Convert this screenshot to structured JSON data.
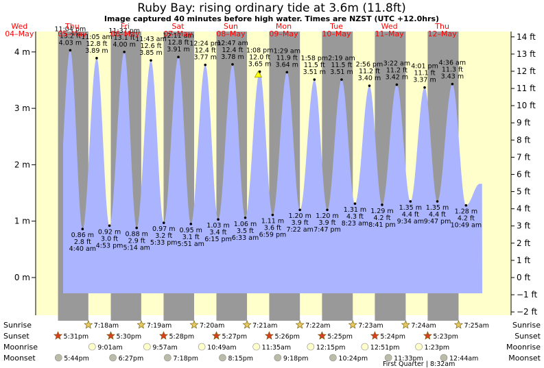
{
  "chart_data": {
    "type": "area",
    "title": "Ruby Bay: rising  ordinary tide at 3.6m (11.8ft)",
    "subtitle": "Image captured 40 minutes before high water. Times are NZST (UTC +12.0hrs)",
    "ylabel_left_unit": "m",
    "ylabel_right_unit": "ft",
    "y_left_ticks": [
      "0 m",
      "1 m",
      "2 m",
      "3 m",
      "4 m"
    ],
    "y_right_ticks": [
      "−2 ft",
      "−1 ft",
      "0 ft",
      "1 ft",
      "2 ft",
      "3 ft",
      "4 ft",
      "5 ft",
      "6 ft",
      "7 ft",
      "8 ft",
      "9 ft",
      "10 ft",
      "11 ft",
      "12 ft",
      "13 ft",
      "14 ft"
    ],
    "days": [
      {
        "name": "Wed",
        "date": "04–May"
      },
      {
        "name": "Thu",
        "date": "05–May"
      },
      {
        "name": "Fri",
        "date": "06–May"
      },
      {
        "name": "Sat",
        "date": "07–May"
      },
      {
        "name": "Sun",
        "date": "08–May"
      },
      {
        "name": "Mon",
        "date": "09–May"
      },
      {
        "name": "Tue",
        "date": "10–May"
      },
      {
        "name": "Wed",
        "date": "11–May"
      },
      {
        "name": "Thu",
        "date": "12–May"
      }
    ],
    "current_level_m": 3.6,
    "tides": [
      {
        "type": "high",
        "time": "11:04 pm",
        "ft": "13.2 ft",
        "m": 4.03,
        "label": "4.03 m"
      },
      {
        "type": "low",
        "time": "4:40 am",
        "ft": "2.8 ft",
        "m": 0.86,
        "label": "0.86 m"
      },
      {
        "type": "high",
        "time": "11:05 am",
        "ft": "12.8 ft",
        "m": 3.89,
        "label": "3.89 m"
      },
      {
        "type": "low",
        "time": "4:53 pm",
        "ft": "3.0 ft",
        "m": 0.92,
        "label": "0.92 m"
      },
      {
        "type": "high",
        "time": "11:37 pm",
        "ft": "13.1 ft",
        "m": 4.0,
        "label": "4.00 m"
      },
      {
        "type": "low",
        "time": "5:14 am",
        "ft": "2.9 ft",
        "m": 0.88,
        "label": "0.88 m"
      },
      {
        "type": "high",
        "time": "11:43 am",
        "ft": "12.6 ft",
        "m": 3.85,
        "label": "3.85 m"
      },
      {
        "type": "low",
        "time": "5:33 pm",
        "ft": "3.2 ft",
        "m": 0.97,
        "label": "0.97 m"
      },
      {
        "type": "high",
        "time": "12:11 am",
        "ft": "12.8 ft",
        "m": 3.91,
        "label": "3.91 m"
      },
      {
        "type": "low",
        "time": "5:51 am",
        "ft": "3.1 ft",
        "m": 0.95,
        "label": "0.95 m"
      },
      {
        "type": "high",
        "time": "12:24 pm",
        "ft": "12.4 ft",
        "m": 3.77,
        "label": "3.77 m"
      },
      {
        "type": "low",
        "time": "6:15 pm",
        "ft": "3.4 ft",
        "m": 1.03,
        "label": "1.03 m"
      },
      {
        "type": "high",
        "time": "12:47 am",
        "ft": "12.4 ft",
        "m": 3.78,
        "label": "3.78 m"
      },
      {
        "type": "low",
        "time": "6:33 am",
        "ft": "3.5 ft",
        "m": 1.06,
        "label": "1.06 m"
      },
      {
        "type": "high",
        "time": "1:08 pm",
        "ft": "12.0 ft",
        "m": 3.65,
        "label": "3.65 m"
      },
      {
        "type": "low",
        "time": "6:59 pm",
        "ft": "3.6 ft",
        "m": 1.11,
        "label": "1.11 m"
      },
      {
        "type": "high",
        "time": "1:29 am",
        "ft": "11.9 ft",
        "m": 3.64,
        "label": "3.64 m"
      },
      {
        "type": "low",
        "time": "7:22 am",
        "ft": "3.9 ft",
        "m": 1.2,
        "label": "1.20 m"
      },
      {
        "type": "high",
        "time": "1:58 pm",
        "ft": "11.5 ft",
        "m": 3.51,
        "label": "3.51 m"
      },
      {
        "type": "low",
        "time": "7:47 pm",
        "ft": "3.9 ft",
        "m": 1.2,
        "label": "1.20 m"
      },
      {
        "type": "high",
        "time": "2:19 am",
        "ft": "11.5 ft",
        "m": 3.51,
        "label": "3.51 m"
      },
      {
        "type": "low",
        "time": "8:23 am",
        "ft": "4.3 ft",
        "m": 1.31,
        "label": "1.31 m"
      },
      {
        "type": "high",
        "time": "2:56 pm",
        "ft": "11.2 ft",
        "m": 3.4,
        "label": "3.40 m"
      },
      {
        "type": "low",
        "time": "8:41 pm",
        "ft": "4.2 ft",
        "m": 1.29,
        "label": "1.29 m"
      },
      {
        "type": "high",
        "time": "3:22 am",
        "ft": "11.2 ft",
        "m": 3.42,
        "label": "3.42 m"
      },
      {
        "type": "low",
        "time": "9:34 am",
        "ft": "4.4 ft",
        "m": 1.35,
        "label": "1.35 m"
      },
      {
        "type": "high",
        "time": "4:01 pm",
        "ft": "11.1 ft",
        "m": 3.37,
        "label": "3.37 m"
      },
      {
        "type": "low",
        "time": "9:47 pm",
        "ft": "4.4 ft",
        "m": 1.35,
        "label": "1.35 m"
      },
      {
        "type": "high",
        "time": "4:36 am",
        "ft": "11.3 ft",
        "m": 3.43,
        "label": "3.43 m"
      },
      {
        "type": "low",
        "time": "10:49 am",
        "ft": "4.2 ft",
        "m": 1.28,
        "label": "1.28 m"
      }
    ],
    "colors": {
      "water": "#aab4ff",
      "night": "#999999",
      "day": "#ffffcc",
      "gridline": "#000000"
    }
  },
  "events": {
    "labels": {
      "sunrise": "Sunrise",
      "sunset": "Sunset",
      "moonrise": "Moonrise",
      "moonset": "Moonset"
    },
    "sunrise": [
      "7:18am",
      "7:19am",
      "7:20am",
      "7:21am",
      "7:22am",
      "7:23am",
      "7:24am",
      "7:25am"
    ],
    "sunset": [
      "5:31pm",
      "5:30pm",
      "5:28pm",
      "5:27pm",
      "5:26pm",
      "5:25pm",
      "5:24pm",
      "5:23pm"
    ],
    "moonrise": [
      "9:01am",
      "9:57am",
      "10:49am",
      "11:35am",
      "12:15pm",
      "12:51pm",
      "1:23pm"
    ],
    "moonset": [
      "5:44pm",
      "6:27pm",
      "7:18pm",
      "8:15pm",
      "9:18pm",
      "10:24pm",
      "11:33pm",
      "12:44am"
    ],
    "moon_phase": "First Quarter | 8:32am"
  }
}
